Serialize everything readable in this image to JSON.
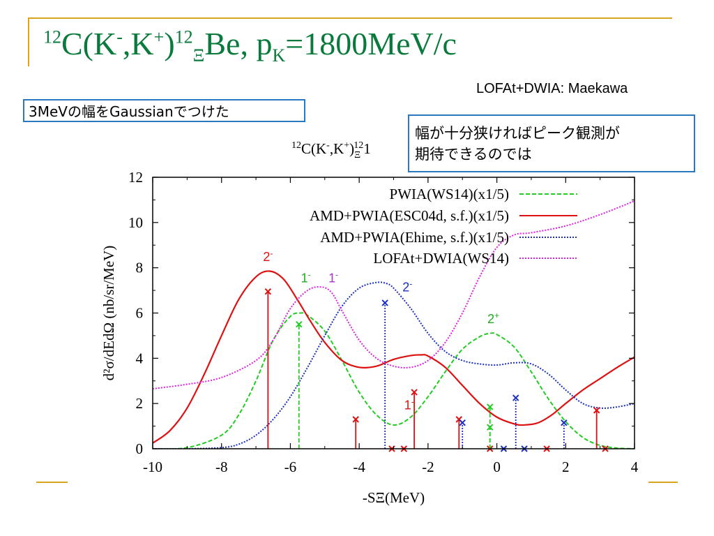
{
  "slide": {
    "title_parts": [
      "12",
      "C(K",
      "-",
      ",K",
      "+",
      ")",
      "12",
      "Ξ",
      "Be, p",
      "K",
      "=1800MeV/c"
    ],
    "credit": "LOFAt+DWIA: Maekawa",
    "note1": "3MeVの幅をGaussianでつけた",
    "note2_line1": "幅が十分狭ければピーク観測が",
    "note2_line2": "期待できるのでは",
    "chart_subtitle_visible": "12C(K-,K+)Ξ12",
    "colors": {
      "accent_line": "#d9a520",
      "title": "#0a7a3c",
      "box_border": "#2b78c0"
    }
  },
  "chart_data": {
    "type": "line",
    "title": "12C(K-,K+)Ξ12",
    "xlabel": "-SΞ(MeV)",
    "ylabel": "d²σ/dEdΩ (nb/sr/MeV)",
    "xlim": [
      -10,
      4
    ],
    "ylim": [
      0,
      12
    ],
    "xticks": [
      -10,
      -8,
      -6,
      -4,
      -2,
      0,
      2,
      4
    ],
    "yticks": [
      0,
      2,
      4,
      6,
      8,
      10,
      12
    ],
    "legend_position": "top-right",
    "series": [
      {
        "name": "PWIA(WS14)(x1/5)",
        "color": "#22cc22",
        "dash": "dashed",
        "x": [
          -10,
          -9,
          -8,
          -7.5,
          -7,
          -6.5,
          -6,
          -5.7,
          -5.5,
          -5,
          -4.5,
          -4,
          -3.5,
          -3,
          -2.5,
          -2,
          -1.5,
          -1,
          -0.5,
          -0.2,
          0,
          0.5,
          1,
          1.5,
          2,
          2.5,
          3,
          3.5,
          4
        ],
        "y": [
          0.0,
          0.05,
          0.6,
          1.5,
          3.0,
          4.8,
          5.85,
          6.0,
          5.9,
          5.2,
          3.9,
          2.5,
          1.5,
          1.05,
          1.4,
          2.3,
          3.4,
          4.4,
          4.95,
          5.1,
          5.05,
          4.5,
          3.4,
          2.2,
          1.2,
          0.5,
          0.15,
          0.03,
          0.0
        ]
      },
      {
        "name": "AMD+PWIA(ESC04d, s.f.)(x1/5)",
        "color": "#dd1111",
        "dash": "solid",
        "x": [
          -10,
          -9.5,
          -9,
          -8.5,
          -8,
          -7.5,
          -7,
          -6.6,
          -6.2,
          -5.8,
          -5.4,
          -5,
          -4.5,
          -4,
          -3.5,
          -3,
          -2.5,
          -2.2,
          -2,
          -1.5,
          -1,
          -0.5,
          0,
          0.5,
          0.8,
          1.2,
          1.6,
          2,
          2.5,
          3,
          3.5,
          4
        ],
        "y": [
          0.25,
          0.8,
          1.8,
          3.3,
          5.0,
          6.6,
          7.6,
          7.85,
          7.5,
          6.6,
          5.6,
          4.7,
          3.9,
          3.6,
          3.65,
          3.95,
          4.12,
          4.15,
          4.1,
          3.6,
          2.8,
          2.0,
          1.4,
          1.1,
          1.05,
          1.15,
          1.5,
          2.0,
          2.6,
          3.1,
          3.6,
          4.05
        ]
      },
      {
        "name": "AMD+PWIA(Ehime, s.f.)(x1/5)",
        "color": "#1a2fbf",
        "dash": "dotted",
        "x": [
          -10,
          -9,
          -8,
          -7.5,
          -7,
          -6.5,
          -6,
          -5.5,
          -5,
          -4.5,
          -4,
          -3.5,
          -3.2,
          -3,
          -2.5,
          -2,
          -1.5,
          -1,
          -0.5,
          0,
          0.5,
          1,
          1.5,
          2,
          2.5,
          3,
          3.5,
          4
        ],
        "y": [
          0.0,
          0.0,
          0.05,
          0.2,
          0.6,
          1.3,
          2.3,
          3.6,
          5.0,
          6.3,
          7.1,
          7.35,
          7.3,
          7.1,
          6.2,
          5.1,
          4.3,
          3.9,
          3.75,
          3.7,
          3.8,
          3.75,
          3.3,
          2.6,
          2.0,
          1.8,
          1.85,
          2.0
        ]
      },
      {
        "name": "LOFAt+DWIA(WS14)",
        "color": "#e020e0",
        "dash": "dotted",
        "x": [
          -10,
          -9,
          -8,
          -7,
          -6.5,
          -6,
          -5.5,
          -5.1,
          -4.8,
          -4.5,
          -4,
          -3.5,
          -3,
          -2.5,
          -2,
          -1.5,
          -1,
          -0.5,
          0,
          0.5,
          1,
          2,
          3,
          4
        ],
        "y": [
          2.65,
          2.85,
          3.15,
          3.9,
          4.8,
          6.2,
          7.0,
          7.15,
          6.9,
          6.1,
          4.8,
          4.0,
          3.65,
          3.6,
          3.9,
          4.7,
          6.0,
          7.6,
          8.9,
          9.45,
          9.55,
          9.85,
          10.35,
          10.95
        ]
      }
    ],
    "stems": [
      {
        "color": "#dd1111",
        "dash": "solid",
        "points": [
          [
            -6.65,
            6.95
          ],
          [
            -4.1,
            1.3
          ],
          [
            -3.05,
            0.0
          ],
          [
            -2.7,
            0.0
          ],
          [
            -2.4,
            2.5
          ],
          [
            -1.1,
            1.3
          ],
          [
            -0.2,
            0.0
          ],
          [
            1.45,
            0.0
          ],
          [
            2.9,
            1.7
          ],
          [
            3.15,
            0.0
          ]
        ]
      },
      {
        "color": "#22cc22",
        "dash": "dashed",
        "points": [
          [
            -5.75,
            5.5
          ],
          [
            -0.2,
            1.85
          ],
          [
            -0.2,
            0.95
          ]
        ]
      },
      {
        "color": "#1a2fbf",
        "dash": "dotted",
        "points": [
          [
            -3.25,
            6.45
          ],
          [
            -1.0,
            1.15
          ],
          [
            0.2,
            0.0
          ],
          [
            0.55,
            2.25
          ],
          [
            0.8,
            0.0
          ],
          [
            1.95,
            1.15
          ]
        ]
      }
    ],
    "annotations": [
      {
        "text": "2-",
        "x": -6.65,
        "y": 8.3,
        "color": "#dd1111"
      },
      {
        "text": "1-",
        "x": -5.55,
        "y": 7.35,
        "color": "#22aa22"
      },
      {
        "text": "1-",
        "x": -4.75,
        "y": 7.35,
        "color": "#aa33cc"
      },
      {
        "text": "2-",
        "x": -2.6,
        "y": 6.95,
        "color": "#1a2fbf"
      },
      {
        "text": "2+",
        "x": -0.1,
        "y": 5.55,
        "color": "#22aa22"
      },
      {
        "text": "1-",
        "x": -2.55,
        "y": 1.75,
        "color": "#dd1111"
      }
    ]
  }
}
